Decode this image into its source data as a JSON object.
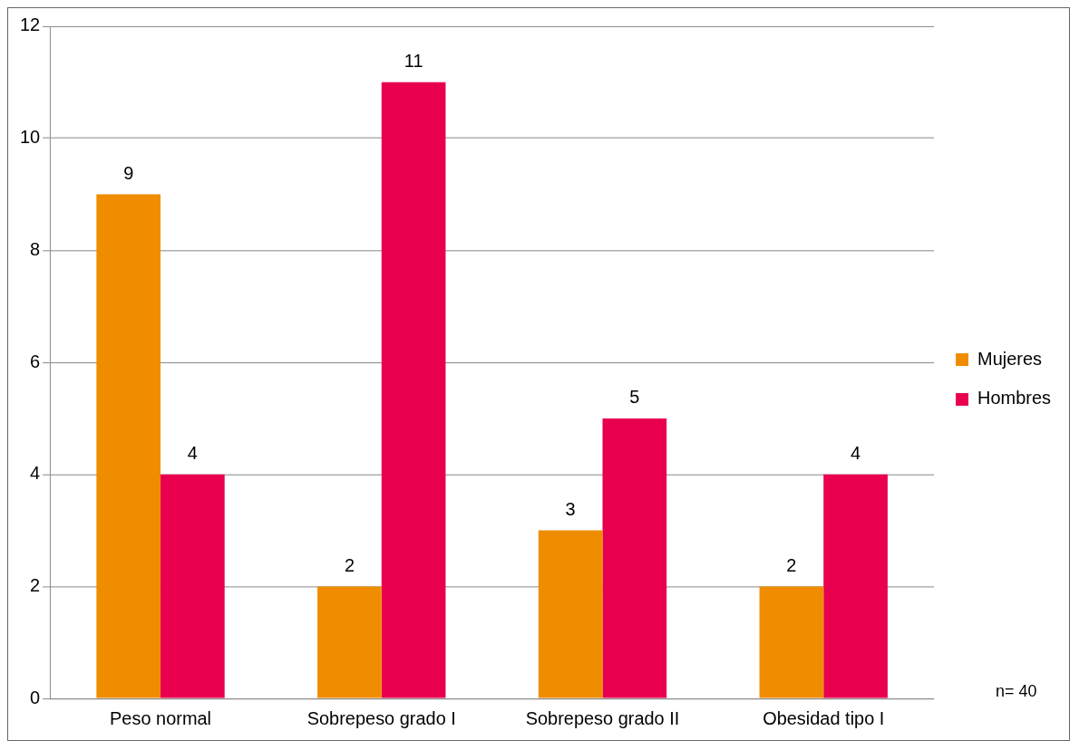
{
  "chart_data": {
    "type": "bar",
    "categories": [
      "Peso normal",
      "Sobrepeso grado I",
      "Sobrepeso grado II",
      "Obesidad tipo I"
    ],
    "series": [
      {
        "name": "Mujeres",
        "color": "#f08c00",
        "values": [
          9,
          2,
          3,
          2
        ]
      },
      {
        "name": "Hombres",
        "color": "#e8004e",
        "values": [
          4,
          11,
          5,
          4
        ]
      }
    ],
    "ylim": [
      0,
      12
    ],
    "yticks": [
      0,
      2,
      4,
      6,
      8,
      10,
      12
    ],
    "grid": "y",
    "legend": "right",
    "data_labels": true,
    "annotations": [
      "n= 40"
    ]
  }
}
